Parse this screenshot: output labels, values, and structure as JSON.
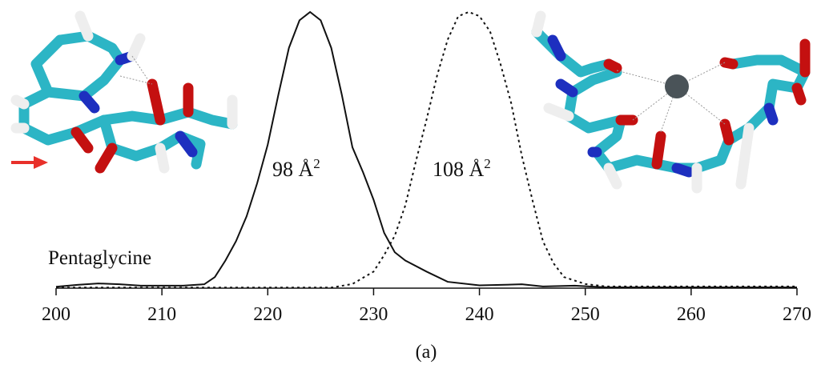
{
  "chart_data": {
    "type": "line",
    "annotations": [
      {
        "text": "98 Å",
        "superscript": "2"
      },
      {
        "text": "108 Å",
        "superscript": "2"
      },
      {
        "text": "Pentaglycine"
      }
    ],
    "caption": "(a)",
    "xlim": [
      200,
      270
    ],
    "xticks": [
      200,
      210,
      220,
      230,
      240,
      250,
      260,
      270
    ],
    "ylim": [
      0,
      1
    ],
    "series": [
      {
        "color": "#111111",
        "style": "solid",
        "x": [
          200,
          202,
          204,
          206,
          208,
          210,
          212,
          214,
          215,
          216,
          217,
          218,
          219,
          220,
          221,
          222,
          223,
          224,
          225,
          226,
          227,
          228,
          229,
          230,
          231,
          232,
          233,
          235,
          237,
          240,
          244,
          246,
          249,
          252,
          270
        ],
        "values": [
          0.005,
          0.012,
          0.017,
          0.014,
          0.009,
          0.009,
          0.009,
          0.014,
          0.04,
          0.1,
          0.17,
          0.26,
          0.38,
          0.52,
          0.7,
          0.87,
          0.97,
          1.0,
          0.97,
          0.87,
          0.7,
          0.51,
          0.42,
          0.32,
          0.2,
          0.13,
          0.1,
          0.06,
          0.023,
          0.01,
          0.014,
          0.006,
          0.009,
          0.003,
          0.003
        ]
      },
      {
        "color": "#111111",
        "style": "dotted",
        "x": [
          200,
          226,
          228,
          230,
          231,
          232,
          233,
          234,
          235,
          236,
          237,
          238,
          239,
          240,
          241,
          242,
          243,
          244,
          245,
          246,
          247,
          248,
          250,
          252,
          270
        ],
        "values": [
          0.002,
          0.002,
          0.015,
          0.06,
          0.12,
          0.19,
          0.3,
          0.46,
          0.61,
          0.77,
          0.9,
          0.985,
          1.0,
          0.985,
          0.93,
          0.81,
          0.67,
          0.48,
          0.32,
          0.17,
          0.09,
          0.04,
          0.015,
          0.006,
          0.006
        ]
      }
    ]
  }
}
